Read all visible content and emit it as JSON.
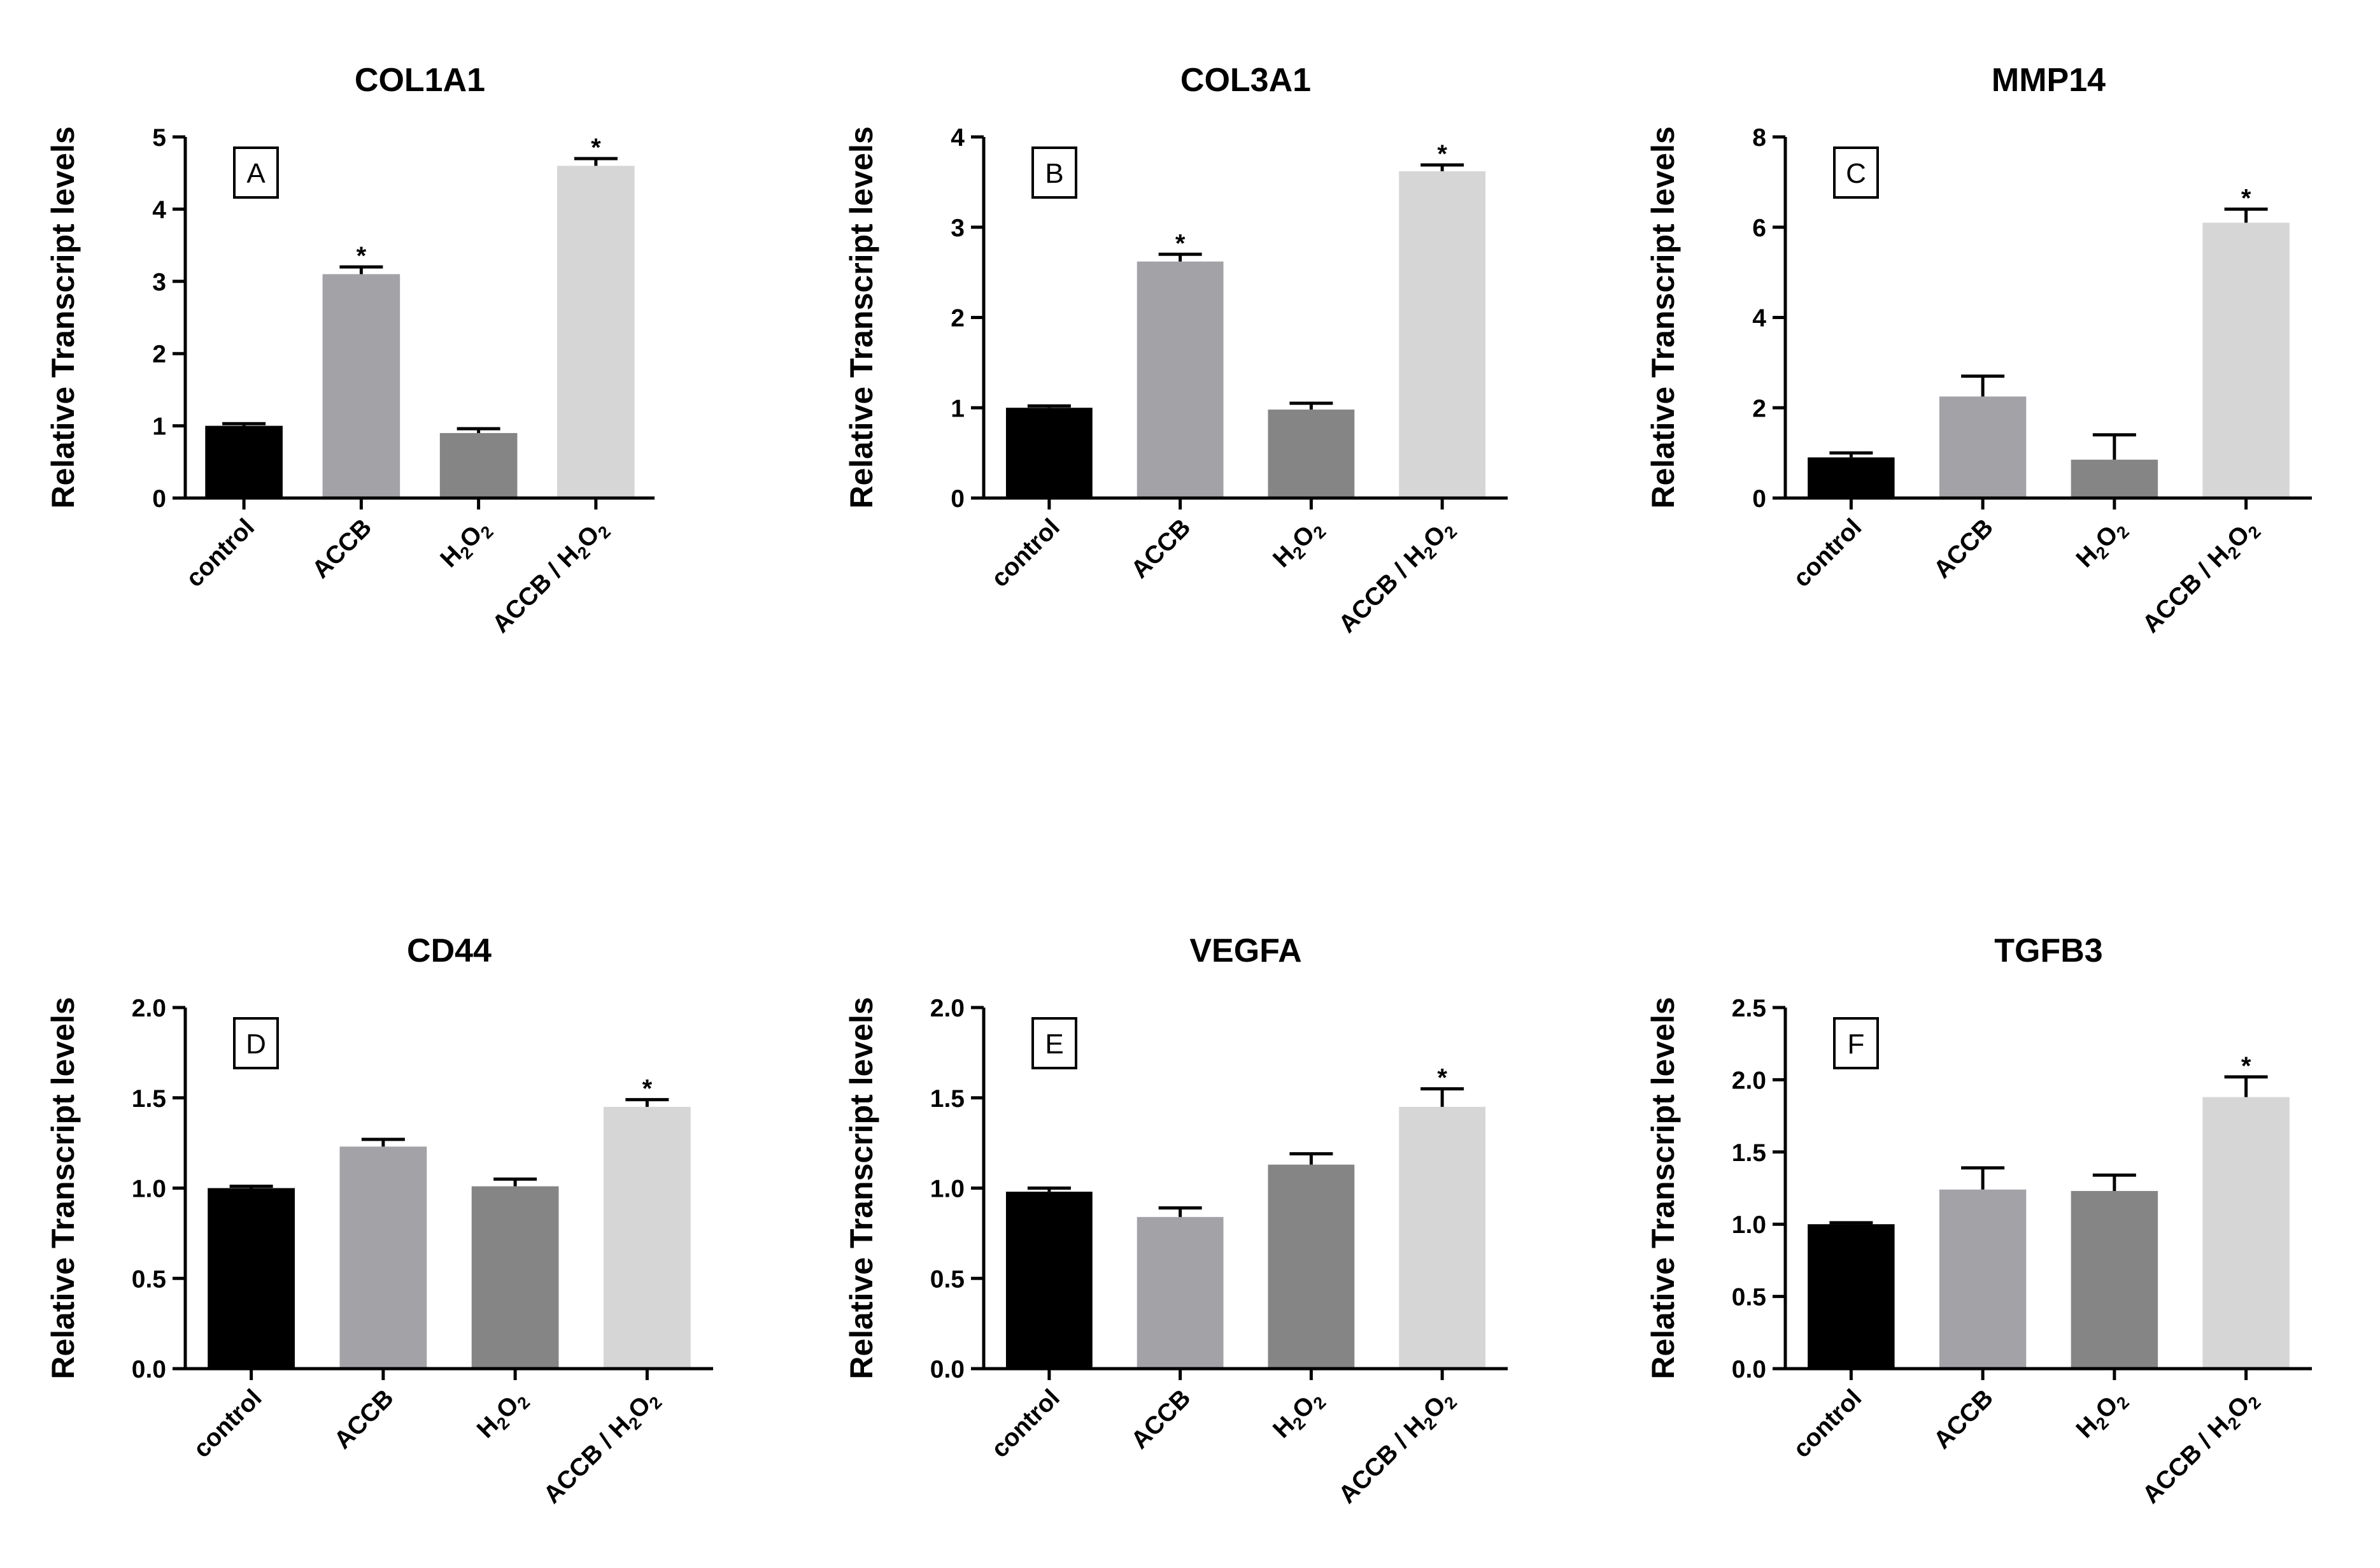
{
  "colors": {
    "control": "#000000",
    "ACCB": "#a3a2a7",
    "H2O2": "#858585",
    "ACCB_H2O2": "#d6d6d6",
    "axis": "#000000",
    "background": "#ffffff"
  },
  "chart_data": [
    {
      "type": "bar",
      "panel_label": "A",
      "title": "COL1A1",
      "ylabel": "Relative Transcript levels",
      "xlabel": "",
      "ylim": [
        0,
        5
      ],
      "yticks": [
        "0",
        "1",
        "2",
        "3",
        "4",
        "5"
      ],
      "categories": [
        "control",
        "ACCB",
        "H2O2",
        "ACCB / H2O2"
      ],
      "values": [
        1.0,
        3.1,
        0.9,
        4.6
      ],
      "errors": [
        0.03,
        0.1,
        0.06,
        0.1
      ],
      "significance": [
        "",
        "*",
        "",
        "*"
      ]
    },
    {
      "type": "bar",
      "panel_label": "B",
      "title": "COL3A1",
      "ylabel": "Relative Transcript levels",
      "xlabel": "",
      "ylim": [
        0,
        4
      ],
      "yticks": [
        "0",
        "1",
        "2",
        "3",
        "4"
      ],
      "categories": [
        "control",
        "ACCB",
        "H2O2",
        "ACCB / H2O2"
      ],
      "values": [
        1.0,
        2.62,
        0.98,
        3.62
      ],
      "errors": [
        0.02,
        0.08,
        0.07,
        0.07
      ],
      "significance": [
        "",
        "*",
        "",
        "*"
      ]
    },
    {
      "type": "bar",
      "panel_label": "C",
      "title": "MMP14",
      "ylabel": "Relative Transcript levels",
      "xlabel": "",
      "ylim": [
        0,
        8
      ],
      "yticks": [
        "0",
        "2",
        "4",
        "6",
        "8"
      ],
      "categories": [
        "control",
        "ACCB",
        "H2O2",
        "ACCB / H2O2"
      ],
      "values": [
        0.9,
        2.25,
        0.85,
        6.1
      ],
      "errors": [
        0.1,
        0.45,
        0.55,
        0.3
      ],
      "significance": [
        "",
        "",
        "",
        "*"
      ]
    },
    {
      "type": "bar",
      "panel_label": "D",
      "title": "CD44",
      "ylabel": "Relative Transcript levels",
      "xlabel": "",
      "ylim": [
        0,
        2
      ],
      "yticks": [
        "0.0",
        "0.5",
        "1.0",
        "1.5",
        "2.0"
      ],
      "categories": [
        "control",
        "ACCB",
        "H2O2",
        "ACCB / H2O2"
      ],
      "values": [
        1.0,
        1.23,
        1.01,
        1.45
      ],
      "errors": [
        0.01,
        0.04,
        0.04,
        0.04
      ],
      "significance": [
        "",
        "",
        "",
        "*"
      ]
    },
    {
      "type": "bar",
      "panel_label": "E",
      "title": "VEGFA",
      "ylabel": "Relative Transcript levels",
      "xlabel": "",
      "ylim": [
        0,
        2
      ],
      "yticks": [
        "0.0",
        "0.5",
        "1.0",
        "1.5",
        "2.0"
      ],
      "categories": [
        "control",
        "ACCB",
        "H2O2",
        "ACCB / H2O2"
      ],
      "values": [
        0.98,
        0.84,
        1.13,
        1.45
      ],
      "errors": [
        0.02,
        0.05,
        0.06,
        0.1
      ],
      "significance": [
        "",
        "",
        "",
        "*"
      ]
    },
    {
      "type": "bar",
      "panel_label": "F",
      "title": "TGFB3",
      "ylabel": "Relative Transcript levels",
      "xlabel": "",
      "ylim": [
        0,
        2.5
      ],
      "yticks": [
        "0.0",
        "0.5",
        "1.0",
        "1.5",
        "2.0",
        "2.5"
      ],
      "categories": [
        "control",
        "ACCB",
        "H2O2",
        "ACCB / H2O2"
      ],
      "values": [
        1.0,
        1.24,
        1.23,
        1.88
      ],
      "errors": [
        0.01,
        0.15,
        0.11,
        0.14
      ],
      "significance": [
        "",
        "",
        "",
        "*"
      ]
    }
  ]
}
